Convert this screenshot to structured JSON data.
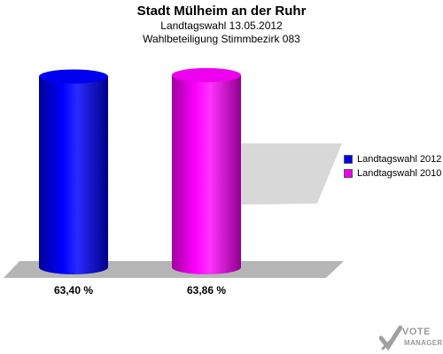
{
  "title": "Stadt Mülheim an der Ruhr",
  "subtitle1": "Landtagswahl 13.05.2012",
  "subtitle2": "Wahlbeteiligung Stimmbezirk 083",
  "watermark": {
    "line1": "VOTE",
    "line2": "MANAGER"
  },
  "chart_data": {
    "type": "bar",
    "title": "Stadt Mülheim an der Ruhr",
    "subtitle": [
      "Landtagswahl 13.05.2012",
      "Wahlbeteiligung Stimmbezirk 083"
    ],
    "series": [
      {
        "name": "Landtagswahl 2012",
        "value": 63.4,
        "label": "63,40 %",
        "color": "#0000ee"
      },
      {
        "name": "Landtagswahl 2010",
        "value": 63.86,
        "label": "63,86 %",
        "color": "#ee00ee"
      }
    ],
    "legend": "right",
    "grid": false
  }
}
